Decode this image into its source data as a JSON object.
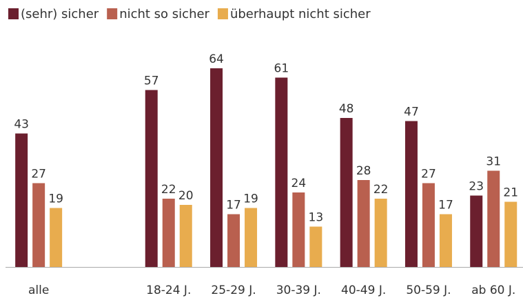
{
  "chart_data": {
    "type": "bar",
    "categories": [
      "alle",
      null,
      "18-24 J.",
      "25-29 J.",
      "30-39 J.",
      "40-49 J.",
      "50-59 J.",
      "ab 60 J."
    ],
    "series": [
      {
        "name": "(sehr) sicher",
        "color": "#6b1f2e",
        "values": [
          43,
          null,
          57,
          64,
          61,
          48,
          47,
          23
        ]
      },
      {
        "name": "nicht so sicher",
        "color": "#b9604f",
        "values": [
          27,
          null,
          22,
          17,
          24,
          28,
          27,
          31
        ]
      },
      {
        "name": "überhaupt nicht sicher",
        "color": "#e8ac4e",
        "values": [
          19,
          null,
          20,
          19,
          13,
          22,
          17,
          21
        ]
      }
    ],
    "ylim": [
      0,
      86
    ],
    "legend": "top-left"
  }
}
